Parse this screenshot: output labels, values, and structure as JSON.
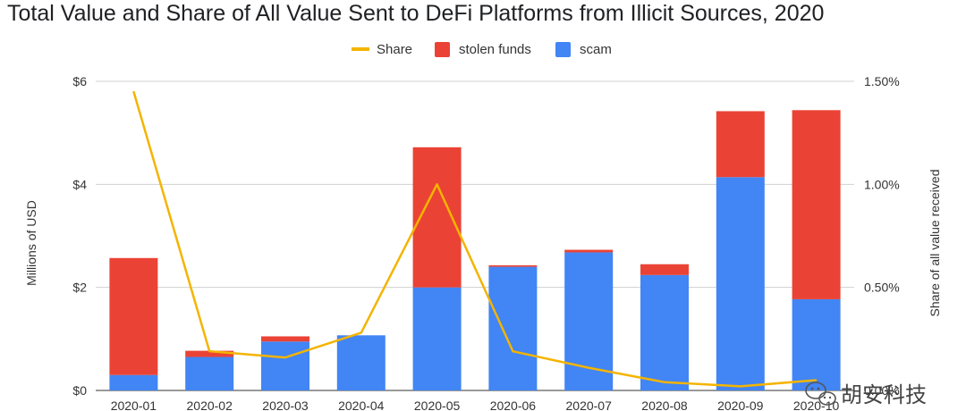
{
  "chart_data": {
    "type": "bar",
    "stacked": true,
    "title": "Total Value and Share of All Value Sent to DeFi Platforms from Illicit Sources, 2020",
    "categories": [
      "2020-01",
      "2020-02",
      "2020-03",
      "2020-04",
      "2020-05",
      "2020-06",
      "2020-07",
      "2020-08",
      "2020-09",
      "2020-10"
    ],
    "series": [
      {
        "name": "scam",
        "type": "bar",
        "color": "#4285F4",
        "values": [
          0.3,
          0.65,
          0.95,
          1.07,
          2.0,
          2.4,
          2.68,
          2.24,
          4.14,
          1.77
        ]
      },
      {
        "name": "stolen funds",
        "type": "bar",
        "color": "#EA4335",
        "values": [
          2.27,
          0.12,
          0.1,
          0.0,
          2.72,
          0.03,
          0.05,
          0.21,
          1.28,
          3.67
        ]
      },
      {
        "name": "Share",
        "type": "line",
        "axis": "right",
        "color": "#F4B400",
        "values": [
          1.45,
          0.19,
          0.16,
          0.28,
          1.0,
          0.19,
          0.11,
          0.04,
          0.02,
          0.05
        ]
      }
    ],
    "legend": {
      "position": "top",
      "order": [
        "Share",
        "stolen funds",
        "scam"
      ]
    },
    "ylabel": "Millions of USD",
    "ylim": [
      0,
      6
    ],
    "yticks": [
      "$0",
      "$2",
      "$4",
      "$6"
    ],
    "y2label": "Share of all value received",
    "y2lim": [
      0,
      1.5
    ],
    "y2ticks": [
      "0.00%",
      "0.50%",
      "1.00%",
      "1.50%"
    ],
    "grid": true
  },
  "watermark": {
    "text": "胡安科技",
    "icon": "wechat-icon"
  }
}
